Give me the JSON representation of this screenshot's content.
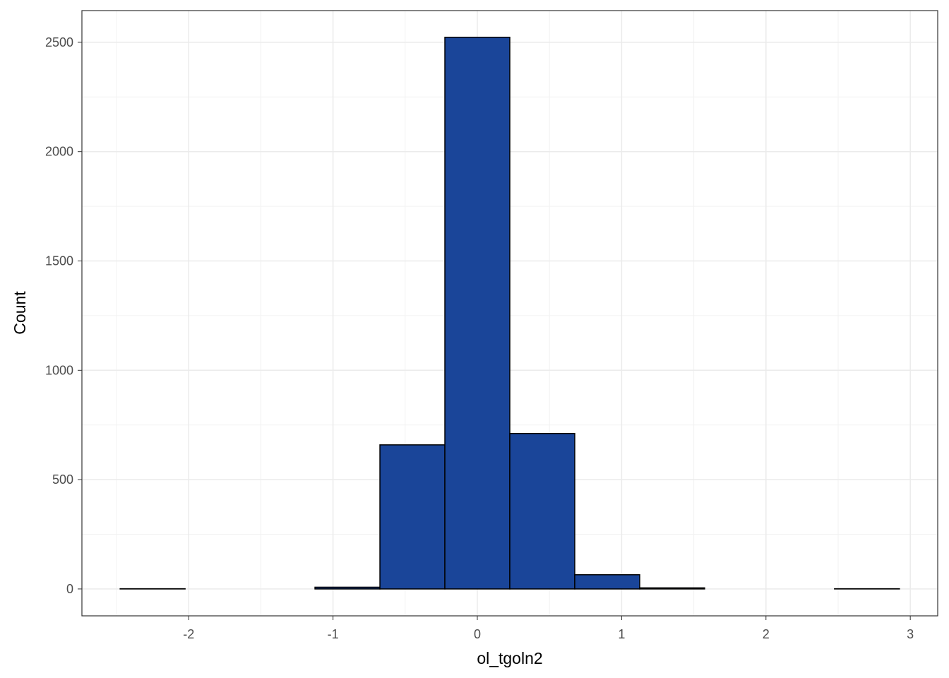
{
  "chart_data": {
    "type": "histogram",
    "x_label": "ol_tgoln2",
    "y_label": "Count",
    "bins": [
      -2.475,
      -2.025,
      -1.575,
      -1.125,
      -0.675,
      -0.225,
      0.225,
      0.675,
      1.125,
      1.575,
      2.025,
      2.475,
      2.925
    ],
    "values": [
      1,
      0,
      0,
      8,
      659,
      2523,
      711,
      65,
      5,
      0,
      0,
      1
    ],
    "color": "#1a4599",
    "edgecolor": "#000000",
    "xlim": [
      -2.74,
      3.19
    ],
    "ylim": [
      -123,
      2645
    ],
    "xticks": [
      -2,
      -1,
      0,
      1,
      2,
      3
    ],
    "yticks": [
      0,
      500,
      1000,
      1500,
      2000,
      2500
    ],
    "xminor": [
      -2.5,
      -1.5,
      -0.5,
      0.5,
      1.5,
      2.5
    ],
    "yminor": [
      250,
      750,
      1250,
      1750,
      2250
    ],
    "grid": true
  }
}
